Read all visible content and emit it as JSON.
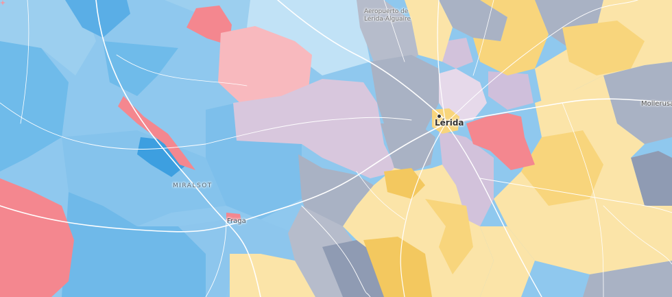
{
  "map": {
    "labels": {
      "airport_line1": "Aeropuerto de",
      "airport_line2": "Lérida-Alguaire",
      "city": "Lérida",
      "mollerusa": "Mollerusa",
      "miralsot": "MIRALSOT",
      "fraga": "Fraga"
    },
    "colors": {
      "blue_light": "#c1e2f6",
      "blue_mid": "#8fc8ee",
      "blue_strong": "#5aaee6",
      "blue_dark": "#3d9fe0",
      "red": "#f4878f",
      "red_light": "#f8b9be",
      "purple": "#d8c7dd",
      "gray": "#a9b2c4",
      "gray_dark": "#8f9bb3",
      "yellow_light": "#fbe4a8",
      "yellow": "#f8d57c",
      "yellow_dark": "#f3c85f",
      "road": "#ffffff"
    }
  }
}
